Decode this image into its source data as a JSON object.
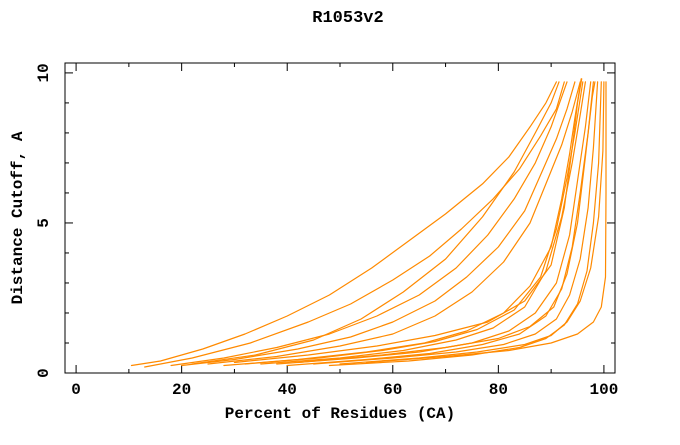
{
  "title": "R1053v2",
  "axes": {
    "x_label": "Percent of Residues (CA)",
    "y_label": "Distance Cutoff, A"
  },
  "chart_data": {
    "type": "line",
    "title": "R1053v2",
    "xlabel": "Percent of Residues (CA)",
    "ylabel": "Distance Cutoff, A",
    "xlim": [
      -2.1,
      102.1
    ],
    "ylim": [
      0,
      10.33
    ],
    "grid": false,
    "legend": false,
    "frame": "box-with-mirrored-ticks",
    "line_color": "#ff8a00",
    "frame_color": "#000000",
    "background_color": "#ffffff",
    "x_major_ticks": [
      0,
      20,
      40,
      60,
      80,
      100
    ],
    "x_major_labels": [
      "0",
      "20",
      "40",
      "60",
      "80",
      "100"
    ],
    "x_minor_ticks": [
      10,
      30,
      50,
      70,
      90
    ],
    "y_major_ticks": [
      0,
      5,
      10
    ],
    "y_major_labels": [
      "0",
      "5",
      "10"
    ],
    "y_minor_ticks": [
      1,
      2,
      3,
      4,
      6,
      7,
      8,
      9
    ],
    "series": [
      [
        [
          10.5,
          0.25
        ],
        [
          16,
          0.4
        ],
        [
          24,
          0.8
        ],
        [
          32,
          1.3
        ],
        [
          40,
          1.9
        ],
        [
          48,
          2.6
        ],
        [
          56,
          3.5
        ],
        [
          63,
          4.4
        ],
        [
          70,
          5.3
        ],
        [
          77,
          6.3
        ],
        [
          82,
          7.2
        ],
        [
          86,
          8.2
        ],
        [
          89,
          9.0
        ],
        [
          91,
          9.7
        ]
      ],
      [
        [
          13,
          0.2
        ],
        [
          22,
          0.5
        ],
        [
          33,
          1.0
        ],
        [
          44,
          1.7
        ],
        [
          52,
          2.3
        ],
        [
          60,
          3.1
        ],
        [
          67,
          3.9
        ],
        [
          73,
          4.8
        ],
        [
          79,
          5.8
        ],
        [
          84,
          6.8
        ],
        [
          88,
          7.9
        ],
        [
          91,
          8.8
        ],
        [
          92.5,
          9.7
        ]
      ],
      [
        [
          20,
          0.25
        ],
        [
          30,
          0.45
        ],
        [
          42,
          0.8
        ],
        [
          52,
          1.2
        ],
        [
          60,
          1.7
        ],
        [
          68,
          2.4
        ],
        [
          74,
          3.2
        ],
        [
          80,
          4.2
        ],
        [
          85,
          5.4
        ],
        [
          88,
          6.6
        ],
        [
          91,
          7.8
        ],
        [
          93,
          8.8
        ],
        [
          94.5,
          9.7
        ]
      ],
      [
        [
          25,
          0.3
        ],
        [
          38,
          0.55
        ],
        [
          50,
          0.9
        ],
        [
          60,
          1.3
        ],
        [
          68,
          1.9
        ],
        [
          75,
          2.7
        ],
        [
          81,
          3.7
        ],
        [
          86,
          5.0
        ],
        [
          89,
          6.3
        ],
        [
          92,
          7.6
        ],
        [
          94,
          8.7
        ],
        [
          95.5,
          9.7
        ]
      ],
      [
        [
          28,
          0.25
        ],
        [
          42,
          0.45
        ],
        [
          55,
          0.7
        ],
        [
          66,
          1.0
        ],
        [
          74,
          1.4
        ],
        [
          81,
          2.0
        ],
        [
          86,
          2.9
        ],
        [
          90,
          4.2
        ],
        [
          92,
          5.8
        ],
        [
          93.5,
          7.3
        ],
        [
          94.5,
          8.5
        ],
        [
          95.7,
          9.8
        ]
      ],
      [
        [
          32,
          0.3
        ],
        [
          46,
          0.5
        ],
        [
          58,
          0.75
        ],
        [
          68,
          1.05
        ],
        [
          76,
          1.45
        ],
        [
          83,
          2.1
        ],
        [
          88,
          3.2
        ],
        [
          91,
          4.8
        ],
        [
          93,
          6.5
        ],
        [
          94.5,
          8.0
        ],
        [
          96,
          9.7
        ]
      ],
      [
        [
          35,
          0.3
        ],
        [
          50,
          0.5
        ],
        [
          62,
          0.75
        ],
        [
          72,
          1.1
        ],
        [
          79,
          1.5
        ],
        [
          85,
          2.2
        ],
        [
          89,
          3.4
        ],
        [
          92,
          5.2
        ],
        [
          94,
          7.0
        ],
        [
          95.5,
          8.6
        ],
        [
          96.5,
          9.7
        ]
      ],
      [
        [
          38,
          0.3
        ],
        [
          53,
          0.5
        ],
        [
          65,
          0.7
        ],
        [
          75,
          1.0
        ],
        [
          82,
          1.4
        ],
        [
          87,
          2.0
        ],
        [
          91,
          3.0
        ],
        [
          93.5,
          4.6
        ],
        [
          95,
          6.4
        ],
        [
          96.5,
          8.2
        ],
        [
          97.5,
          9.7
        ]
      ],
      [
        [
          40,
          0.25
        ],
        [
          55,
          0.45
        ],
        [
          67,
          0.65
        ],
        [
          77,
          0.95
        ],
        [
          84,
          1.3
        ],
        [
          89,
          1.9
        ],
        [
          92,
          2.8
        ],
        [
          94,
          4.2
        ],
        [
          95.5,
          6.0
        ],
        [
          97,
          8.0
        ],
        [
          98,
          9.7
        ]
      ],
      [
        [
          45,
          0.3
        ],
        [
          60,
          0.5
        ],
        [
          72,
          0.7
        ],
        [
          81,
          0.95
        ],
        [
          87,
          1.3
        ],
        [
          91,
          1.8
        ],
        [
          93.5,
          2.6
        ],
        [
          95.5,
          3.8
        ],
        [
          97,
          5.5
        ],
        [
          98,
          7.5
        ],
        [
          98.8,
          9.7
        ]
      ],
      [
        [
          50,
          0.3
        ],
        [
          65,
          0.5
        ],
        [
          76,
          0.7
        ],
        [
          85,
          0.95
        ],
        [
          90,
          1.25
        ],
        [
          93,
          1.7
        ],
        [
          95.5,
          2.4
        ],
        [
          97.5,
          3.5
        ],
        [
          99,
          5.2
        ],
        [
          99.8,
          7.4
        ],
        [
          100,
          9.7
        ]
      ],
      [
        [
          55,
          0.35
        ],
        [
          70,
          0.55
        ],
        [
          82,
          0.75
        ],
        [
          90,
          1.0
        ],
        [
          95,
          1.3
        ],
        [
          98,
          1.7
        ],
        [
          99.5,
          2.2
        ],
        [
          100.3,
          3.2
        ],
        [
          100.4,
          6.0
        ],
        [
          100.4,
          9.7
        ]
      ],
      [
        [
          22,
          0.3
        ],
        [
          34,
          0.6
        ],
        [
          45,
          1.1
        ],
        [
          54,
          1.8
        ],
        [
          62,
          2.7
        ],
        [
          70,
          3.8
        ],
        [
          77,
          5.2
        ],
        [
          83,
          6.7
        ],
        [
          87,
          8.0
        ],
        [
          90,
          9.0
        ],
        [
          91.5,
          9.7
        ]
      ],
      [
        [
          30,
          0.35
        ],
        [
          44,
          0.6
        ],
        [
          57,
          0.9
        ],
        [
          68,
          1.25
        ],
        [
          78,
          1.7
        ],
        [
          85,
          2.4
        ],
        [
          90,
          3.6
        ],
        [
          92.5,
          5.5
        ],
        [
          94,
          7.5
        ],
        [
          95,
          9.0
        ],
        [
          95.8,
          9.8
        ]
      ],
      [
        [
          42,
          0.35
        ],
        [
          58,
          0.6
        ],
        [
          70,
          0.85
        ],
        [
          80,
          1.15
        ],
        [
          86,
          1.55
        ],
        [
          90.5,
          2.2
        ],
        [
          93,
          3.3
        ],
        [
          95,
          5.0
        ],
        [
          96.5,
          7.2
        ],
        [
          97.8,
          9.2
        ],
        [
          98.3,
          9.7
        ]
      ],
      [
        [
          18,
          0.25
        ],
        [
          28,
          0.5
        ],
        [
          38,
          0.85
        ],
        [
          48,
          1.3
        ],
        [
          57,
          1.9
        ],
        [
          65,
          2.6
        ],
        [
          72,
          3.5
        ],
        [
          78,
          4.6
        ],
        [
          83,
          5.8
        ],
        [
          87,
          7.0
        ],
        [
          90,
          8.2
        ],
        [
          92,
          9.2
        ],
        [
          93,
          9.7
        ]
      ],
      [
        [
          48,
          0.25
        ],
        [
          63,
          0.4
        ],
        [
          75,
          0.6
        ],
        [
          84,
          0.85
        ],
        [
          89,
          1.15
        ],
        [
          92.5,
          1.6
        ],
        [
          95,
          2.3
        ],
        [
          96.8,
          3.4
        ],
        [
          98,
          5.0
        ],
        [
          99,
          7.0
        ],
        [
          99.5,
          9.7
        ]
      ]
    ]
  }
}
